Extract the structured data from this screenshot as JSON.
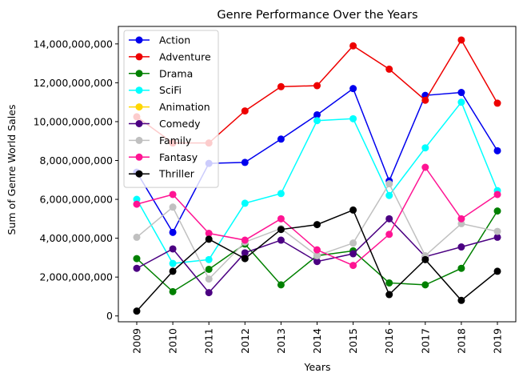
{
  "chart_data": {
    "type": "line",
    "title": "Genre Performance Over the Years",
    "xlabel": "Years",
    "ylabel": "Sum of Genre World Sales",
    "x": [
      "2009",
      "2010",
      "2011",
      "2012",
      "2013",
      "2014",
      "2015",
      "2016",
      "2017",
      "2018",
      "2019"
    ],
    "ylim": [
      -300000000,
      14900000000
    ],
    "yticks": [
      0,
      2000000000,
      4000000000,
      6000000000,
      8000000000,
      10000000000,
      12000000000,
      14000000000
    ],
    "ytick_labels": [
      "0",
      "2,000,000,000",
      "4,000,000,000",
      "6,000,000,000",
      "8,000,000,000",
      "10,000,000,000",
      "12,000,000,000",
      "14,000,000,000"
    ],
    "legend_position": "top-left",
    "grid": false,
    "series": [
      {
        "name": "Action",
        "color": "#0000ee",
        "values": [
          7400000000,
          4300000000,
          7850000000,
          7900000000,
          9100000000,
          10350000000,
          11700000000,
          6950000000,
          11350000000,
          11500000000,
          8500000000
        ]
      },
      {
        "name": "Adventure",
        "color": "#ee0000",
        "values": [
          10250000000,
          8900000000,
          8900000000,
          10550000000,
          11800000000,
          11850000000,
          13900000000,
          12700000000,
          11100000000,
          14200000000,
          10950000000
        ]
      },
      {
        "name": "Drama",
        "color": "#008000",
        "values": [
          2950000000,
          1250000000,
          2400000000,
          3700000000,
          1600000000,
          3100000000,
          3350000000,
          1700000000,
          1600000000,
          2450000000,
          5400000000
        ]
      },
      {
        "name": "SciFi",
        "color": "#00ffff",
        "values": [
          6000000000,
          2700000000,
          2900000000,
          5800000000,
          6300000000,
          10050000000,
          10150000000,
          6200000000,
          8650000000,
          11000000000,
          6450000000
        ]
      },
      {
        "name": "Animation",
        "color": "#ffd700",
        "values": [
          null,
          null,
          null,
          null,
          null,
          null,
          null,
          null,
          null,
          null,
          null
        ]
      },
      {
        "name": "Comedy",
        "color": "#4b0082",
        "values": [
          2450000000,
          3450000000,
          1200000000,
          3250000000,
          3900000000,
          2800000000,
          3200000000,
          5000000000,
          3050000000,
          3550000000,
          4050000000
        ]
      },
      {
        "name": "Family",
        "color": "#c0c0c0",
        "values": [
          4050000000,
          5600000000,
          1900000000,
          3800000000,
          4500000000,
          3100000000,
          3750000000,
          6800000000,
          3100000000,
          4750000000,
          4350000000
        ]
      },
      {
        "name": "Fantasy",
        "color": "#ff1493",
        "values": [
          5750000000,
          6250000000,
          4250000000,
          3900000000,
          5000000000,
          3400000000,
          2600000000,
          4200000000,
          7650000000,
          5000000000,
          6250000000
        ]
      },
      {
        "name": "Thriller",
        "color": "#000000",
        "values": [
          250000000,
          2300000000,
          3950000000,
          2950000000,
          4450000000,
          4700000000,
          5450000000,
          1100000000,
          2900000000,
          800000000,
          2300000000
        ]
      }
    ]
  }
}
